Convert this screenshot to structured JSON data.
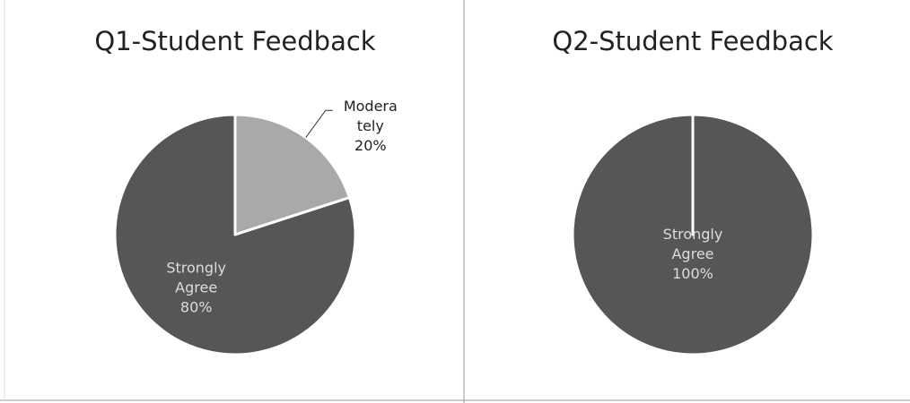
{
  "chart_data": [
    {
      "type": "pie",
      "title": "Q1-Student Feedback",
      "categories": [
        "Moderately",
        "Strongly Agree"
      ],
      "values": [
        20,
        80
      ],
      "value_labels": [
        "20%",
        "80%"
      ],
      "colors": [
        "#a9a9a9",
        "#565656"
      ]
    },
    {
      "type": "pie",
      "title": "Q2-Student Feedback",
      "categories": [
        "Strongly Agree"
      ],
      "values": [
        100
      ],
      "value_labels": [
        "100%"
      ],
      "colors": [
        "#565656"
      ]
    }
  ]
}
